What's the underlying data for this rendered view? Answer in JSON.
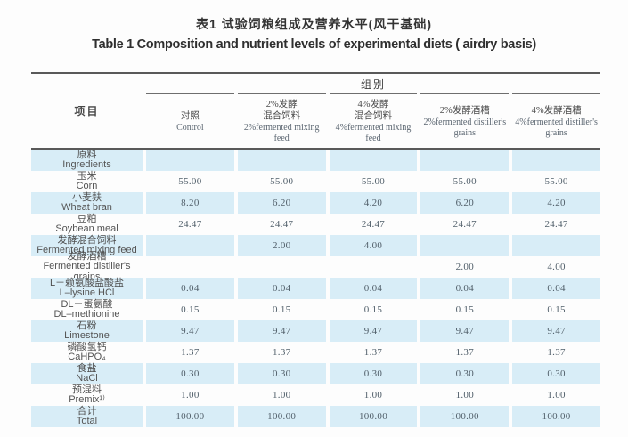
{
  "title": {
    "zh": "表1 试验饲粮组成及营养水平(风干基础)",
    "en": "Table 1 Composition and nutrient levels of experimental diets ( airdry basis)"
  },
  "table": {
    "item_header": "项目",
    "group_header": "组别",
    "columns": [
      {
        "zh": "对照",
        "en": "Control"
      },
      {
        "zh": "2%发酵\n混合饲料",
        "en": "2%fermented mixing feed"
      },
      {
        "zh": "4%发酵\n混合饲料",
        "en": "4%fermented mixing feed"
      },
      {
        "zh": "2%发酵酒糟",
        "en": "2%fermented distiller's grains"
      },
      {
        "zh": "4%发酵酒糟",
        "en": "4%fermented distiller's grains"
      }
    ],
    "rows": [
      {
        "zh": "原料",
        "en": "Ingredients",
        "values": [
          "",
          "",
          "",
          "",
          ""
        ]
      },
      {
        "zh": "玉米",
        "en": "Corn",
        "values": [
          "55.00",
          "55.00",
          "55.00",
          "55.00",
          "55.00"
        ]
      },
      {
        "zh": "小麦麸",
        "en": "Wheat bran",
        "values": [
          "8.20",
          "6.20",
          "4.20",
          "6.20",
          "4.20"
        ]
      },
      {
        "zh": "豆粕",
        "en": "Soybean meal",
        "values": [
          "24.47",
          "24.47",
          "24.47",
          "24.47",
          "24.47"
        ]
      },
      {
        "zh": "发酵混合饲料",
        "en": "Fermented mixing feed",
        "values": [
          "",
          "2.00",
          "4.00",
          "",
          ""
        ]
      },
      {
        "zh": "发酵酒糟",
        "en": "Fermented distiller's grains",
        "values": [
          "",
          "",
          "",
          "2.00",
          "4.00"
        ]
      },
      {
        "zh": "L－赖氨酸盐酸盐",
        "en": "L–lysine HCl",
        "values": [
          "0.04",
          "0.04",
          "0.04",
          "0.04",
          "0.04"
        ]
      },
      {
        "zh": "DL－蛋氨酸",
        "en": "DL–methionine",
        "values": [
          "0.15",
          "0.15",
          "0.15",
          "0.15",
          "0.15"
        ]
      },
      {
        "zh": "石粉",
        "en": "Limestone",
        "values": [
          "9.47",
          "9.47",
          "9.47",
          "9.47",
          "9.47"
        ]
      },
      {
        "zh": "磷酸氢钙",
        "en": "CaHPO₄",
        "values": [
          "1.37",
          "1.37",
          "1.37",
          "1.37",
          "1.37"
        ]
      },
      {
        "zh": "食盐",
        "en": "NaCl",
        "values": [
          "0.30",
          "0.30",
          "0.30",
          "0.30",
          "0.30"
        ]
      },
      {
        "zh": "预混料",
        "en": "Premix¹⁾",
        "values": [
          "1.00",
          "1.00",
          "1.00",
          "1.00",
          "1.00"
        ]
      },
      {
        "zh": "合计",
        "en": "Total",
        "values": [
          "100.00",
          "100.00",
          "100.00",
          "100.00",
          "100.00"
        ]
      }
    ]
  }
}
